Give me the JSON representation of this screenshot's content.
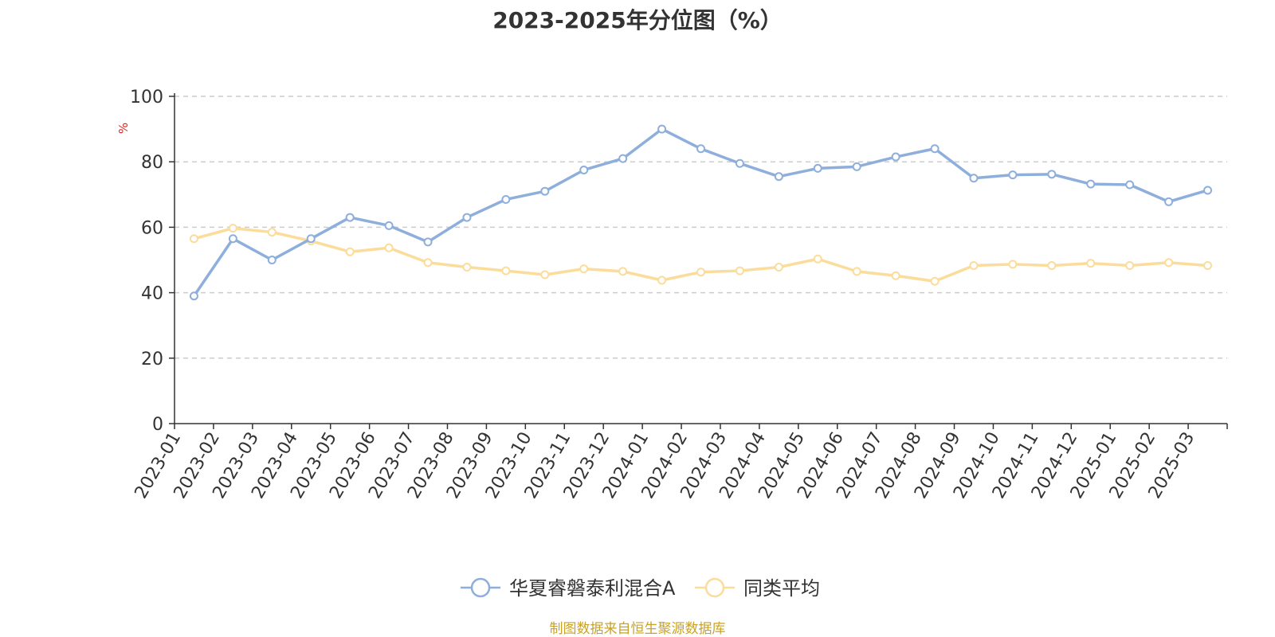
{
  "chart_data": {
    "type": "line",
    "title": "2023-2025年分位图（%）",
    "ylabel": "%",
    "xlabel": "",
    "ylim": [
      0,
      100
    ],
    "yticks": [
      0,
      20,
      40,
      60,
      80,
      100
    ],
    "grid": true,
    "legend_position": "bottom",
    "categories": [
      "2023-01",
      "2023-02",
      "2023-03",
      "2023-04",
      "2023-05",
      "2023-06",
      "2023-07",
      "2023-08",
      "2023-09",
      "2023-10",
      "2023-11",
      "2023-12",
      "2024-01",
      "2024-02",
      "2024-03",
      "2024-04",
      "2024-05",
      "2024-06",
      "2024-07",
      "2024-08",
      "2024-09",
      "2024-10",
      "2024-11",
      "2024-12",
      "2025-01",
      "2025-02",
      "2025-03"
    ],
    "series": [
      {
        "name": "华夏睿磐泰利混合A",
        "color": "#8eaedb",
        "values": [
          39,
          56.5,
          50,
          56.5,
          63,
          60.5,
          55.5,
          63,
          68.5,
          71,
          77.5,
          81,
          90,
          84,
          79.5,
          75.5,
          78,
          78.5,
          81.5,
          84,
          75,
          76,
          76.2,
          73.2,
          73,
          67.8,
          71.3
        ]
      },
      {
        "name": "同类平均",
        "color": "#fcdc9a",
        "values": [
          56.5,
          59.7,
          58.5,
          55.8,
          52.5,
          53.7,
          49.2,
          47.8,
          46.7,
          45.5,
          47.3,
          46.5,
          43.8,
          46.3,
          46.7,
          47.8,
          50.3,
          46.5,
          45.2,
          43.5,
          48.3,
          48.7,
          48.3,
          49,
          48.3,
          49.2,
          48.3
        ]
      }
    ]
  },
  "footer": {
    "source": "制图数据来自恒生聚源数据库"
  }
}
